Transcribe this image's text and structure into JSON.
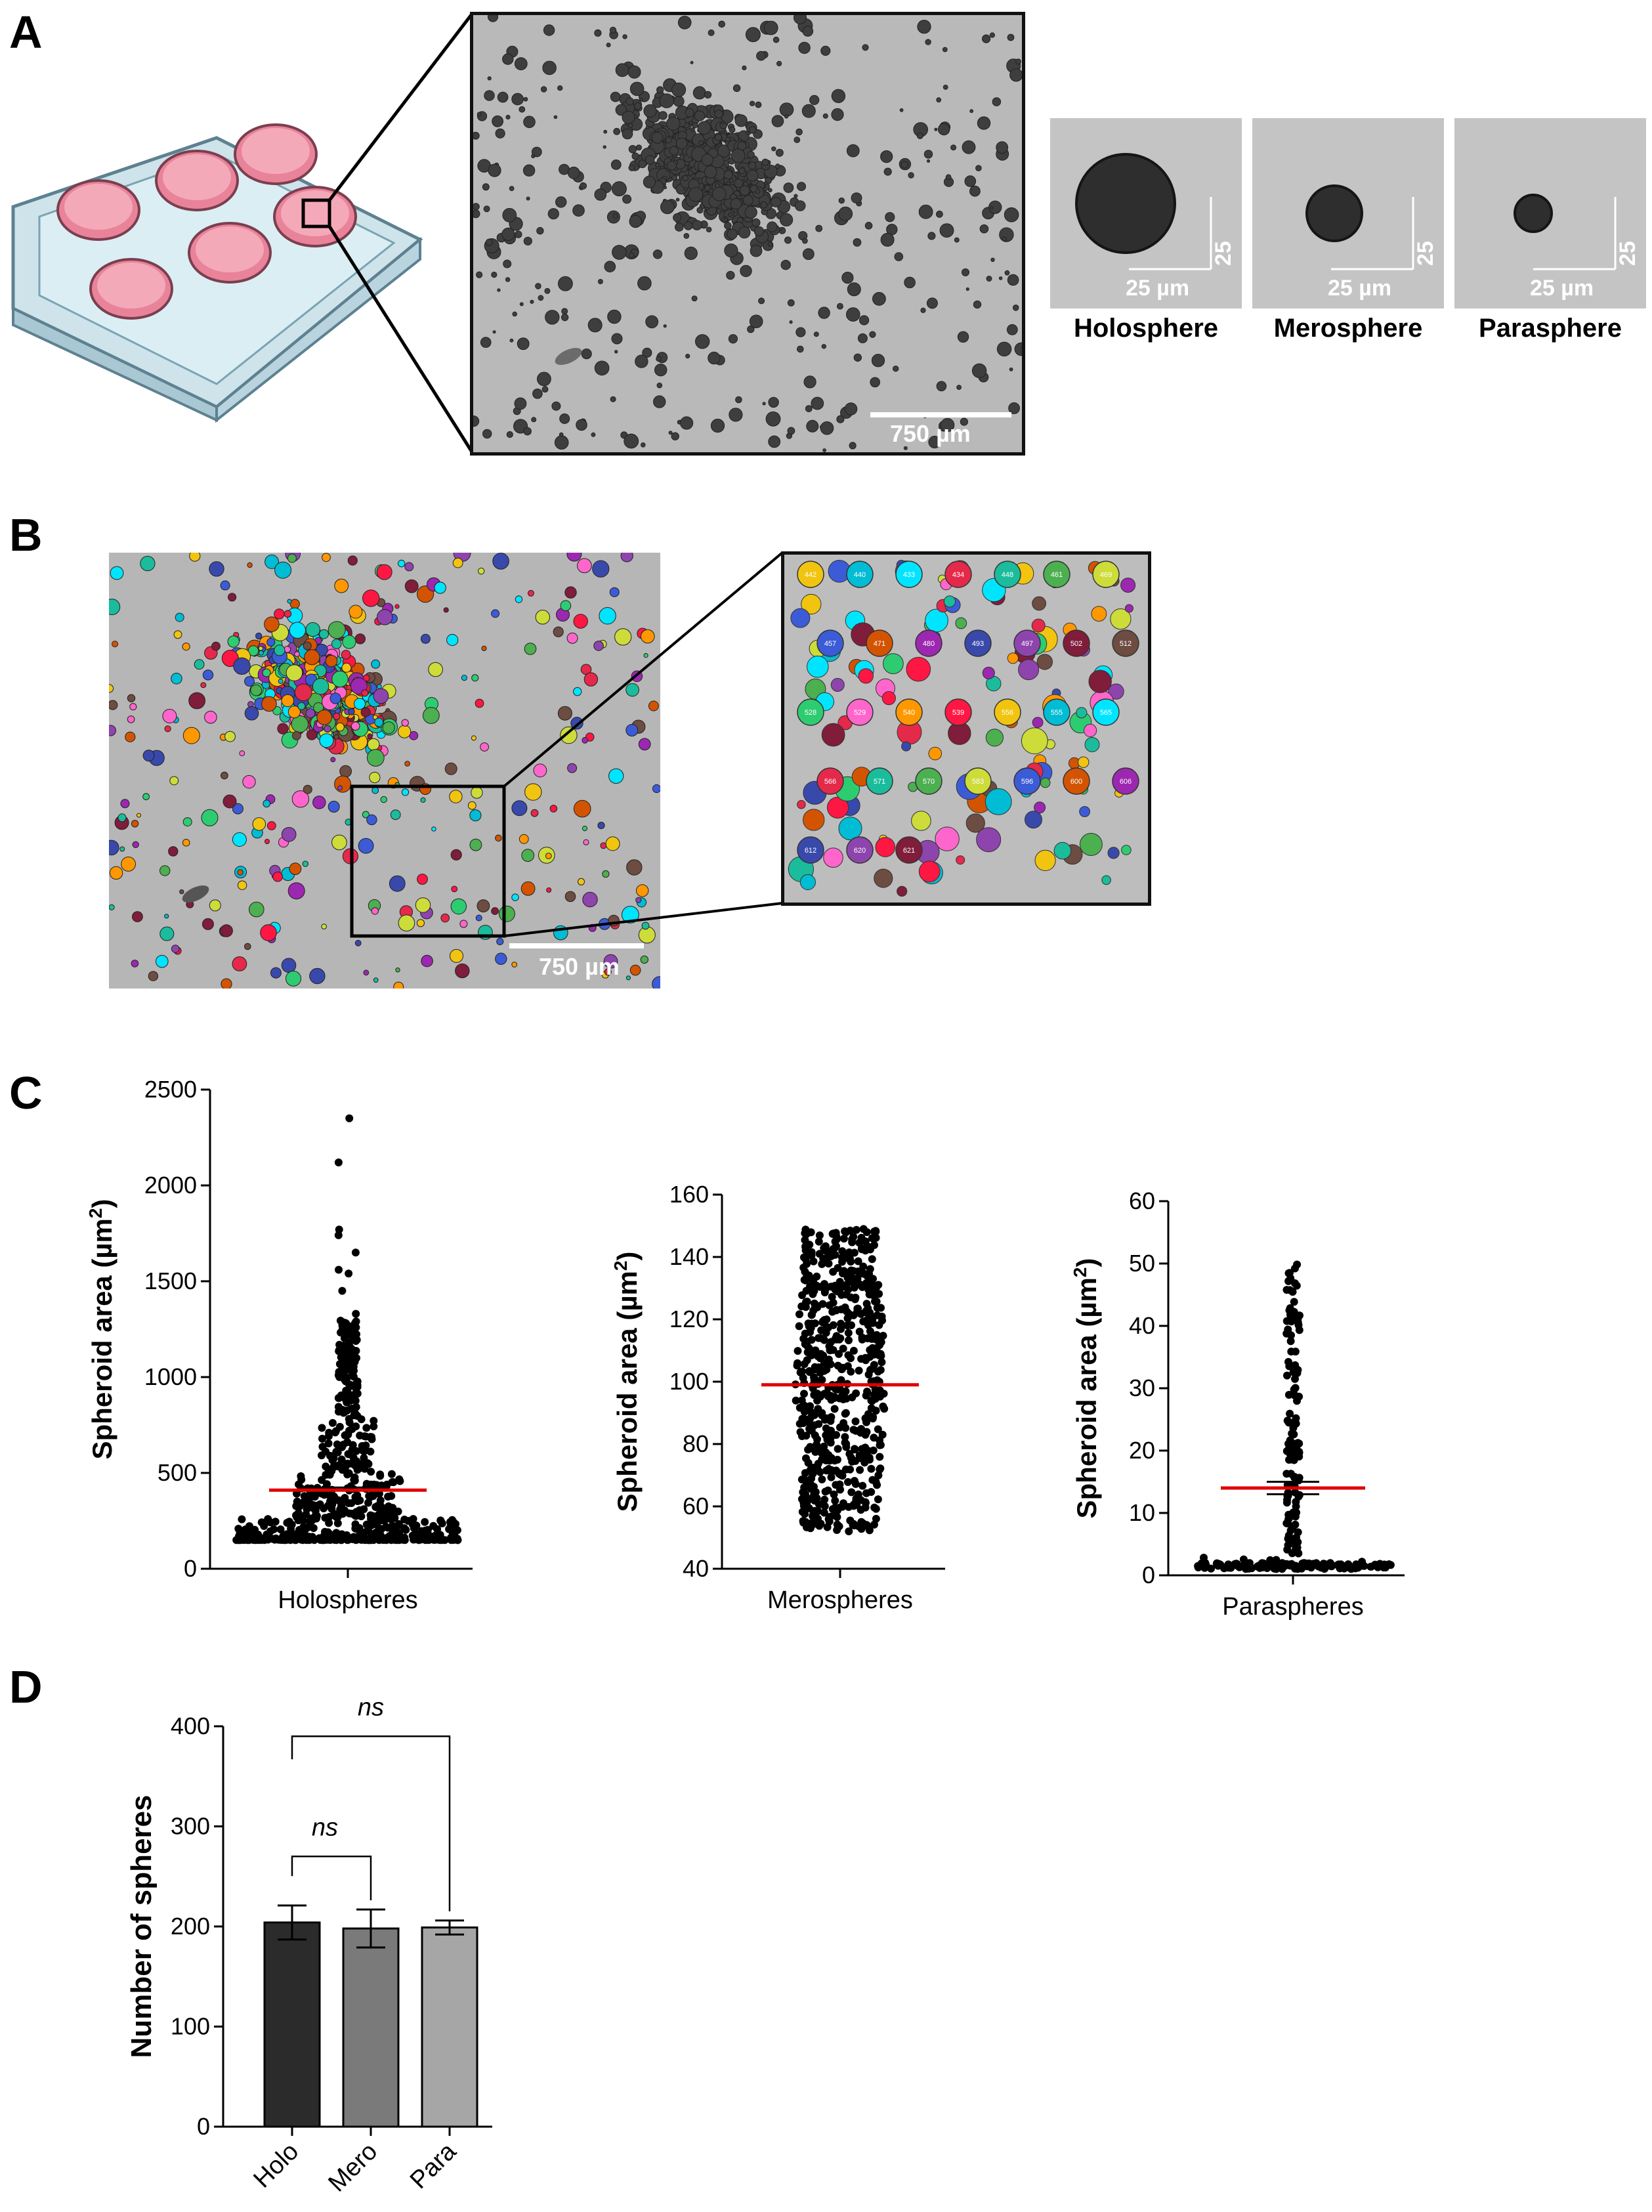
{
  "panels": {
    "a": "A",
    "b": "B",
    "c": "C",
    "d": "D"
  },
  "panel_a": {
    "scale_bar": "750 µm",
    "thumbnails": [
      {
        "label": "Holosphere",
        "scale_h": "25 µm",
        "scale_v": "25 µm"
      },
      {
        "label": "Merosphere",
        "scale_h": "25 µm",
        "scale_v": "25 µm"
      },
      {
        "label": "Parasphere",
        "scale_h": "25 µm",
        "scale_v": "25 µm"
      }
    ]
  },
  "panel_b": {
    "scale_bar": "750 µm",
    "inset_labels": [
      "442",
      "440",
      "433",
      "434",
      "448",
      "461",
      "469",
      "457",
      "471",
      "480",
      "493",
      "497",
      "502",
      "512",
      "528",
      "529",
      "540",
      "539",
      "556",
      "555",
      "565",
      "566",
      "571",
      "570",
      "583",
      "596",
      "600",
      "606",
      "612",
      "620",
      "621"
    ]
  },
  "chart_data": [
    {
      "type": "scatter",
      "title": "",
      "categories": [
        "Holospheres"
      ],
      "ylabel": "Spheroid area (µm²)",
      "ylabel_parts": {
        "base": "Spheroid area (µm",
        "sup": "2",
        "end": ")"
      },
      "yticks": [
        0,
        500,
        1000,
        1500,
        2000,
        2500
      ],
      "ylim": [
        0,
        2500
      ],
      "mean": 410,
      "mean_color": "#e00000",
      "outliers": [
        2350,
        2120,
        1770,
        1740,
        1650,
        1560,
        1540,
        1450,
        1330
      ],
      "approx_range": [
        150,
        1300
      ]
    },
    {
      "type": "scatter",
      "title": "",
      "categories": [
        "Merospheres"
      ],
      "ylabel": "Spheroid area (µm²)",
      "ylabel_parts": {
        "base": "Spheroid area (µm",
        "sup": "2",
        "end": ")"
      },
      "yticks": [
        40,
        60,
        80,
        100,
        120,
        140,
        160
      ],
      "ylim": [
        40,
        160
      ],
      "mean": 99,
      "mean_color": "#e00000",
      "approx_range": [
        52,
        149
      ]
    },
    {
      "type": "scatter",
      "title": "",
      "categories": [
        "Paraspheres"
      ],
      "ylabel": "Spheroid area (µm²)",
      "ylabel_parts": {
        "base": "Spheroid area (µm",
        "sup": "2",
        "end": ")"
      },
      "yticks": [
        0,
        10,
        20,
        30,
        40,
        50,
        60
      ],
      "ylim": [
        0,
        60
      ],
      "mean": 14,
      "mean_color": "#e00000",
      "approx_range": [
        1,
        51
      ]
    },
    {
      "type": "bar",
      "title": "",
      "categories": [
        "Holo",
        "Mero",
        "Para"
      ],
      "values": [
        204,
        198,
        199
      ],
      "errors": [
        17,
        19,
        7
      ],
      "colors": [
        "#2b2b2b",
        "#7a7a7a",
        "#a6a6a6"
      ],
      "ylabel": "Number of spheres",
      "yticks": [
        0,
        100,
        200,
        300,
        400
      ],
      "ylim": [
        0,
        400
      ],
      "significance": [
        {
          "from": "Holo",
          "to": "Mero",
          "label": "ns"
        },
        {
          "from": "Holo",
          "to": "Para",
          "label": "ns"
        }
      ]
    }
  ]
}
